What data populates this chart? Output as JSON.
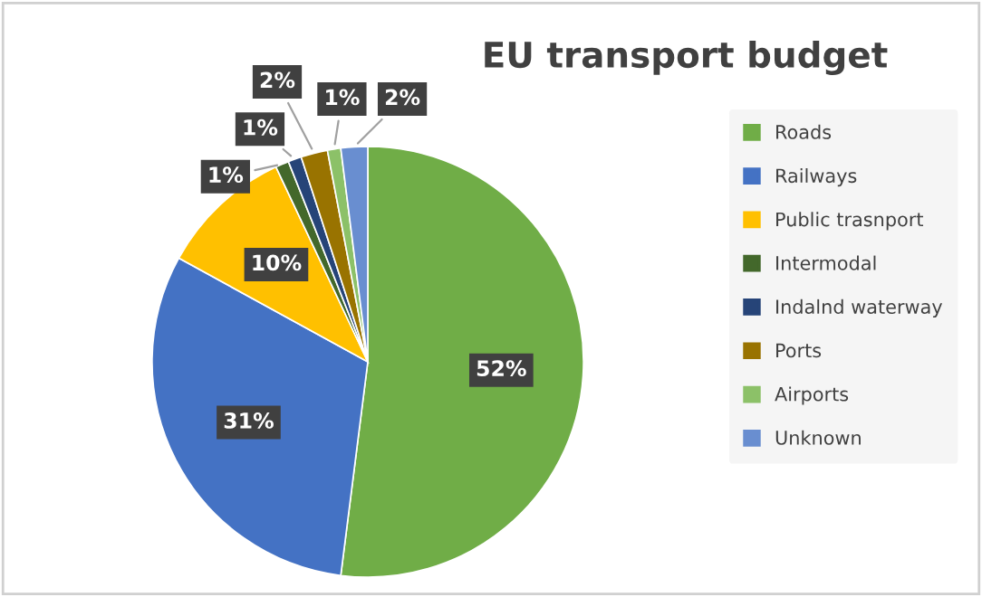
{
  "chart_data": {
    "type": "pie",
    "title": "EU transport budget",
    "categories": [
      "Roads",
      "Railways",
      "Public trasnport",
      "Intermodal",
      "Indalnd waterway",
      "Ports",
      "Airports",
      "Unknown"
    ],
    "values": [
      52,
      31,
      10,
      1,
      1,
      2,
      1,
      2
    ],
    "colors": [
      "#70ad47",
      "#4472c4",
      "#ffc000",
      "#43682b",
      "#264478",
      "#997300",
      "#8cc168",
      "#698ed0"
    ],
    "value_labels": [
      "52%",
      "31%",
      "10%",
      "1%",
      "1%",
      "2%",
      "1%",
      "2%"
    ],
    "legend": "right"
  }
}
